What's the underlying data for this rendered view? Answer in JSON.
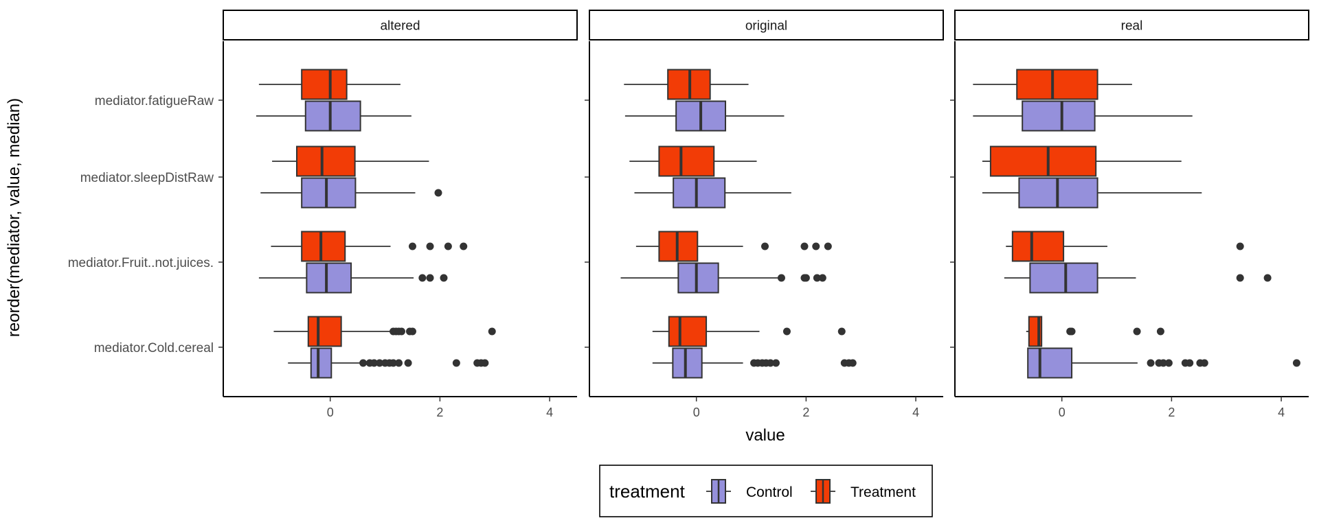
{
  "chart_data": {
    "type": "boxplot",
    "facets": [
      "altered",
      "original",
      "real"
    ],
    "categories": [
      "mediator.fatigueRaw",
      "mediator.sleepDistRaw",
      "mediator.Fruit..not.juices.",
      "mediator.Cold.cereal"
    ],
    "xlabel": "value",
    "ylabel": "reorder(mediator, value, median)",
    "xlim": [
      -1.95,
      4.5
    ],
    "xticks": [
      0,
      2,
      4
    ],
    "legend": {
      "title": "treatment",
      "position": "bottom",
      "entries": [
        {
          "name": "Control",
          "color": "#9590DB"
        },
        {
          "name": "Treatment",
          "color": "#F23C06"
        }
      ]
    },
    "series": [
      {
        "name": "Treatment",
        "color": "#F23C06",
        "panels": {
          "altered": [
            {
              "category": "mediator.fatigueRaw",
              "whisker_low": -1.3,
              "q1": -0.52,
              "median": 0.0,
              "q3": 0.3,
              "whisker_high": 1.28,
              "outliers": []
            },
            {
              "category": "mediator.sleepDistRaw",
              "whisker_low": -1.06,
              "q1": -0.61,
              "median": -0.15,
              "q3": 0.45,
              "whisker_high": 1.8,
              "outliers": []
            },
            {
              "category": "mediator.Fruit..not.juices.",
              "whisker_low": -1.08,
              "q1": -0.52,
              "median": -0.17,
              "q3": 0.27,
              "whisker_high": 1.1,
              "outliers": [
                1.5,
                1.82,
                2.15,
                2.43
              ]
            },
            {
              "category": "mediator.Cold.cereal",
              "whisker_low": -1.03,
              "q1": -0.4,
              "median": -0.22,
              "q3": 0.2,
              "whisker_high": 1.1,
              "outliers": [
                1.15,
                1.2,
                1.25,
                1.3,
                1.45,
                1.5,
                2.95
              ]
            }
          ],
          "original": [
            {
              "category": "mediator.fatigueRaw",
              "whisker_low": -1.32,
              "q1": -0.52,
              "median": -0.12,
              "q3": 0.25,
              "whisker_high": 0.95,
              "outliers": []
            },
            {
              "category": "mediator.sleepDistRaw",
              "whisker_low": -1.22,
              "q1": -0.68,
              "median": -0.28,
              "q3": 0.32,
              "whisker_high": 1.1,
              "outliers": []
            },
            {
              "category": "mediator.Fruit..not.juices.",
              "whisker_low": -1.1,
              "q1": -0.68,
              "median": -0.35,
              "q3": 0.02,
              "whisker_high": 0.85,
              "outliers": [
                1.25,
                1.97,
                2.18,
                2.4
              ]
            },
            {
              "category": "mediator.Cold.cereal",
              "whisker_low": -0.8,
              "q1": -0.5,
              "median": -0.3,
              "q3": 0.18,
              "whisker_high": 1.15,
              "outliers": [
                1.65,
                2.65
              ]
            }
          ],
          "real": [
            {
              "category": "mediator.fatigueRaw",
              "whisker_low": -1.62,
              "q1": -0.82,
              "median": -0.17,
              "q3": 0.65,
              "whisker_high": 1.28,
              "outliers": []
            },
            {
              "category": "mediator.sleepDistRaw",
              "whisker_low": -1.45,
              "q1": -1.3,
              "median": -0.25,
              "q3": 0.62,
              "whisker_high": 2.18,
              "outliers": []
            },
            {
              "category": "mediator.Fruit..not.juices.",
              "whisker_low": -1.02,
              "q1": -0.9,
              "median": -0.55,
              "q3": 0.03,
              "whisker_high": 0.83,
              "outliers": [
                3.25
              ]
            },
            {
              "category": "mediator.Cold.cereal",
              "whisker_low": -0.65,
              "q1": -0.6,
              "median": -0.42,
              "q3": -0.37,
              "whisker_high": -0.37,
              "outliers": [
                0.15,
                0.18,
                1.37,
                1.8
              ]
            }
          ]
        }
      },
      {
        "name": "Control",
        "color": "#9590DB",
        "panels": {
          "altered": [
            {
              "category": "mediator.fatigueRaw",
              "whisker_low": -1.35,
              "q1": -0.45,
              "median": 0.0,
              "q3": 0.55,
              "whisker_high": 1.48,
              "outliers": []
            },
            {
              "category": "mediator.sleepDistRaw",
              "whisker_low": -1.27,
              "q1": -0.52,
              "median": -0.07,
              "q3": 0.46,
              "whisker_high": 1.55,
              "outliers": [
                1.97
              ]
            },
            {
              "category": "mediator.Fruit..not.juices.",
              "whisker_low": -1.3,
              "q1": -0.43,
              "median": -0.07,
              "q3": 0.38,
              "whisker_high": 1.52,
              "outliers": [
                1.68,
                1.82,
                2.07
              ]
            },
            {
              "category": "mediator.Cold.cereal",
              "whisker_low": -0.77,
              "q1": -0.35,
              "median": -0.22,
              "q3": 0.02,
              "whisker_high": 0.57,
              "outliers": [
                0.6,
                0.72,
                0.8,
                0.9,
                1.0,
                1.08,
                1.15,
                1.25,
                1.42,
                2.3,
                2.68,
                2.75,
                2.82
              ]
            }
          ],
          "original": [
            {
              "category": "mediator.fatigueRaw",
              "whisker_low": -1.3,
              "q1": -0.37,
              "median": 0.08,
              "q3": 0.53,
              "whisker_high": 1.6,
              "outliers": []
            },
            {
              "category": "mediator.sleepDistRaw",
              "whisker_low": -1.13,
              "q1": -0.42,
              "median": 0.0,
              "q3": 0.52,
              "whisker_high": 1.73,
              "outliers": []
            },
            {
              "category": "mediator.Fruit..not.juices.",
              "whisker_low": -1.38,
              "q1": -0.33,
              "median": 0.0,
              "q3": 0.4,
              "whisker_high": 1.52,
              "outliers": [
                1.55,
                1.97,
                2.0,
                2.2,
                2.3
              ]
            },
            {
              "category": "mediator.Cold.cereal",
              "whisker_low": -0.8,
              "q1": -0.43,
              "median": -0.2,
              "q3": 0.1,
              "whisker_high": 0.85,
              "outliers": [
                1.05,
                1.12,
                1.2,
                1.27,
                1.35,
                1.45,
                2.7,
                2.78,
                2.85
              ]
            }
          ],
          "real": [
            {
              "category": "mediator.fatigueRaw",
              "whisker_low": -1.62,
              "q1": -0.72,
              "median": 0.0,
              "q3": 0.6,
              "whisker_high": 2.38,
              "outliers": []
            },
            {
              "category": "mediator.sleepDistRaw",
              "whisker_low": -1.45,
              "q1": -0.78,
              "median": -0.08,
              "q3": 0.65,
              "whisker_high": 2.55,
              "outliers": []
            },
            {
              "category": "mediator.Fruit..not.juices.",
              "whisker_low": -1.05,
              "q1": -0.58,
              "median": 0.07,
              "q3": 0.65,
              "whisker_high": 1.35,
              "outliers": [
                3.25,
                3.75
              ]
            },
            {
              "category": "mediator.Cold.cereal",
              "whisker_low": -0.62,
              "q1": -0.62,
              "median": -0.4,
              "q3": 0.18,
              "whisker_high": 1.38,
              "outliers": [
                1.62,
                1.77,
                1.85,
                1.95,
                2.25,
                2.33,
                2.52,
                2.6,
                4.28
              ]
            }
          ]
        }
      }
    ]
  }
}
